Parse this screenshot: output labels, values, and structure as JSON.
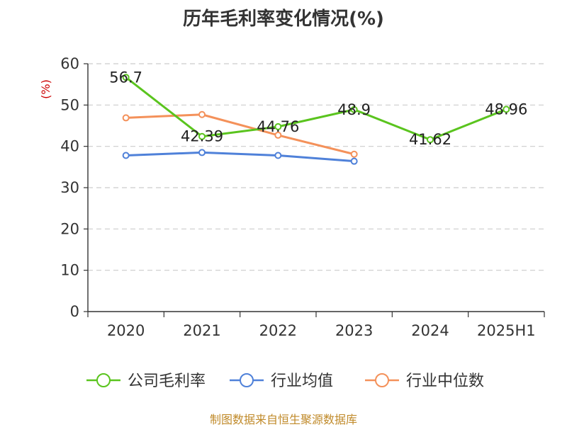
{
  "chart_data": {
    "type": "line",
    "title": "历年毛利率变化情况(%)",
    "ylabel": "(%)",
    "categories": [
      "2020",
      "2021",
      "2022",
      "2023",
      "2024",
      "2025H1"
    ],
    "ylim": [
      0,
      60
    ],
    "yticks": [
      "0",
      "10",
      "20",
      "30",
      "40",
      "50",
      "60"
    ],
    "grid": true,
    "legend_position": "bottom",
    "series": [
      {
        "name": "公司毛利率",
        "color": "#5ac41e",
        "values": [
          56.7,
          42.39,
          44.76,
          48.9,
          41.62,
          48.96
        ],
        "labels": [
          "56.7",
          "42.39",
          "44.76",
          "48.9",
          "41.62",
          "48.96"
        ]
      },
      {
        "name": "行业均值",
        "color": "#4f81d9",
        "values": [
          37.8,
          38.5,
          37.8,
          36.4,
          null,
          null
        ]
      },
      {
        "name": "行业中位数",
        "color": "#f4915a",
        "values": [
          46.9,
          47.7,
          42.7,
          38.1,
          null,
          null
        ]
      }
    ]
  },
  "source_note": "制图数据来自恒生聚源数据库"
}
